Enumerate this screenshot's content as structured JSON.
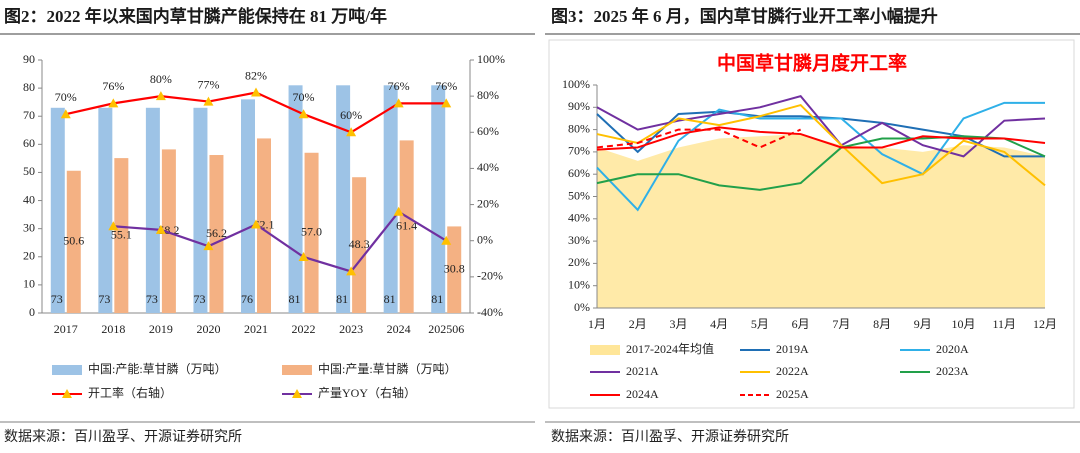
{
  "chart_data": [
    {
      "type": "bar",
      "title": "图2：2022 年以来国内草甘膦产能保持在 81 万吨/年",
      "source": "数据来源：百川盈孚、开源证券研究所",
      "categories": [
        "2017",
        "2018",
        "2019",
        "2020",
        "2021",
        "2022",
        "2023",
        "2024",
        "202506"
      ],
      "ylim": [
        0,
        90
      ],
      "yticks": [
        0,
        10,
        20,
        30,
        40,
        50,
        60,
        70,
        80,
        90
      ],
      "y2lim": [
        -40,
        100
      ],
      "y2ticks": [
        {
          "value": -40,
          "label": "-40%"
        },
        {
          "value": -20,
          "label": "-20%"
        },
        {
          "value": 0,
          "label": "0%"
        },
        {
          "value": 20,
          "label": "20%"
        },
        {
          "value": 40,
          "label": "40%"
        },
        {
          "value": 60,
          "label": "60%"
        },
        {
          "value": 80,
          "label": "80%"
        },
        {
          "value": 100,
          "label": "100%"
        }
      ],
      "series": [
        {
          "name": "中国:产能:草甘膦（万吨）",
          "type": "bar",
          "color": "#9dc3e6",
          "values": [
            73,
            73,
            73,
            73,
            76,
            81,
            81,
            81,
            81
          ]
        },
        {
          "name": "中国:产量:草甘膦（万吨）",
          "type": "bar",
          "color": "#f4b183",
          "values": [
            50.6,
            55.1,
            58.2,
            56.2,
            62.1,
            57.0,
            48.3,
            61.4,
            30.8
          ],
          "value_labels": [
            "50.6",
            "55.1",
            "58.2",
            "56.2",
            "62.1",
            "57.0",
            "48.3",
            "61.4",
            "30.8"
          ]
        },
        {
          "name": "开工率（右轴）",
          "type": "line",
          "axis": "y2",
          "color": "#ff0000",
          "marker_color": "#ffc000",
          "values": [
            70,
            76,
            80,
            77,
            82,
            70,
            60,
            76,
            76
          ],
          "value_labels": [
            "70%",
            "76%",
            "80%",
            "77%",
            "82%",
            "70%",
            "60%",
            "76%",
            "76%"
          ]
        },
        {
          "name": "产量YOY（右轴）",
          "type": "line",
          "axis": "y2",
          "color": "#7030a0",
          "marker_color": "#ffc000",
          "values": [
            null,
            8,
            6,
            -3,
            9,
            -9,
            -17,
            16,
            0
          ]
        }
      ]
    },
    {
      "type": "line",
      "title": "图3：2025 年 6 月，国内草甘膦行业开工率小幅提升",
      "subtitle": "中国草甘膦月度开工率",
      "source": "数据来源：百川盈孚、开源证券研究所",
      "categories": [
        "1月",
        "2月",
        "3月",
        "4月",
        "5月",
        "6月",
        "7月",
        "8月",
        "9月",
        "10月",
        "11月",
        "12月"
      ],
      "ylim": [
        0,
        100
      ],
      "yticks": [
        {
          "value": 0,
          "label": "0%"
        },
        {
          "value": 10,
          "label": "10%"
        },
        {
          "value": 20,
          "label": "20%"
        },
        {
          "value": 30,
          "label": "30%"
        },
        {
          "value": 40,
          "label": "40%"
        },
        {
          "value": 50,
          "label": "50%"
        },
        {
          "value": 60,
          "label": "60%"
        },
        {
          "value": 70,
          "label": "70%"
        },
        {
          "value": 80,
          "label": "80%"
        },
        {
          "value": 90,
          "label": "90%"
        },
        {
          "value": 100,
          "label": "100%"
        }
      ],
      "series": [
        {
          "name": "2017-2024年均值",
          "type": "area",
          "color": "#ffe699",
          "values": [
            72,
            66,
            72,
            76,
            77,
            78,
            73,
            72,
            70,
            73,
            72,
            68
          ]
        },
        {
          "name": "2019A",
          "type": "line",
          "color": "#1f6fb5",
          "values": [
            87,
            70,
            87,
            88,
            86,
            86,
            85,
            83,
            80,
            77,
            68,
            68
          ]
        },
        {
          "name": "2020A",
          "type": "line",
          "color": "#2fb0e8",
          "values": [
            63,
            44,
            75,
            89,
            85,
            85,
            85,
            69,
            60,
            85,
            92,
            92
          ]
        },
        {
          "name": "2021A",
          "type": "line",
          "color": "#7030a0",
          "values": [
            90,
            80,
            84,
            87,
            90,
            95,
            73,
            83,
            73,
            68,
            84,
            85
          ]
        },
        {
          "name": "2022A",
          "type": "line",
          "color": "#ffc000",
          "values": [
            78,
            74,
            85,
            82,
            86,
            91,
            73,
            56,
            60,
            75,
            70,
            55
          ]
        },
        {
          "name": "2023A",
          "type": "line",
          "color": "#22a04a",
          "values": [
            56,
            60,
            60,
            55,
            53,
            56,
            72,
            76,
            76,
            77,
            76,
            68
          ]
        },
        {
          "name": "2024A",
          "type": "line",
          "color": "#ff0000",
          "values": [
            71,
            72,
            78,
            81,
            79,
            78,
            72,
            72,
            77,
            76,
            76,
            74
          ]
        },
        {
          "name": "2025A",
          "type": "line",
          "dashed": true,
          "color": "#ff0000",
          "values": [
            72,
            74,
            80,
            80,
            72,
            80,
            null,
            null,
            null,
            null,
            null,
            null
          ]
        }
      ]
    }
  ]
}
